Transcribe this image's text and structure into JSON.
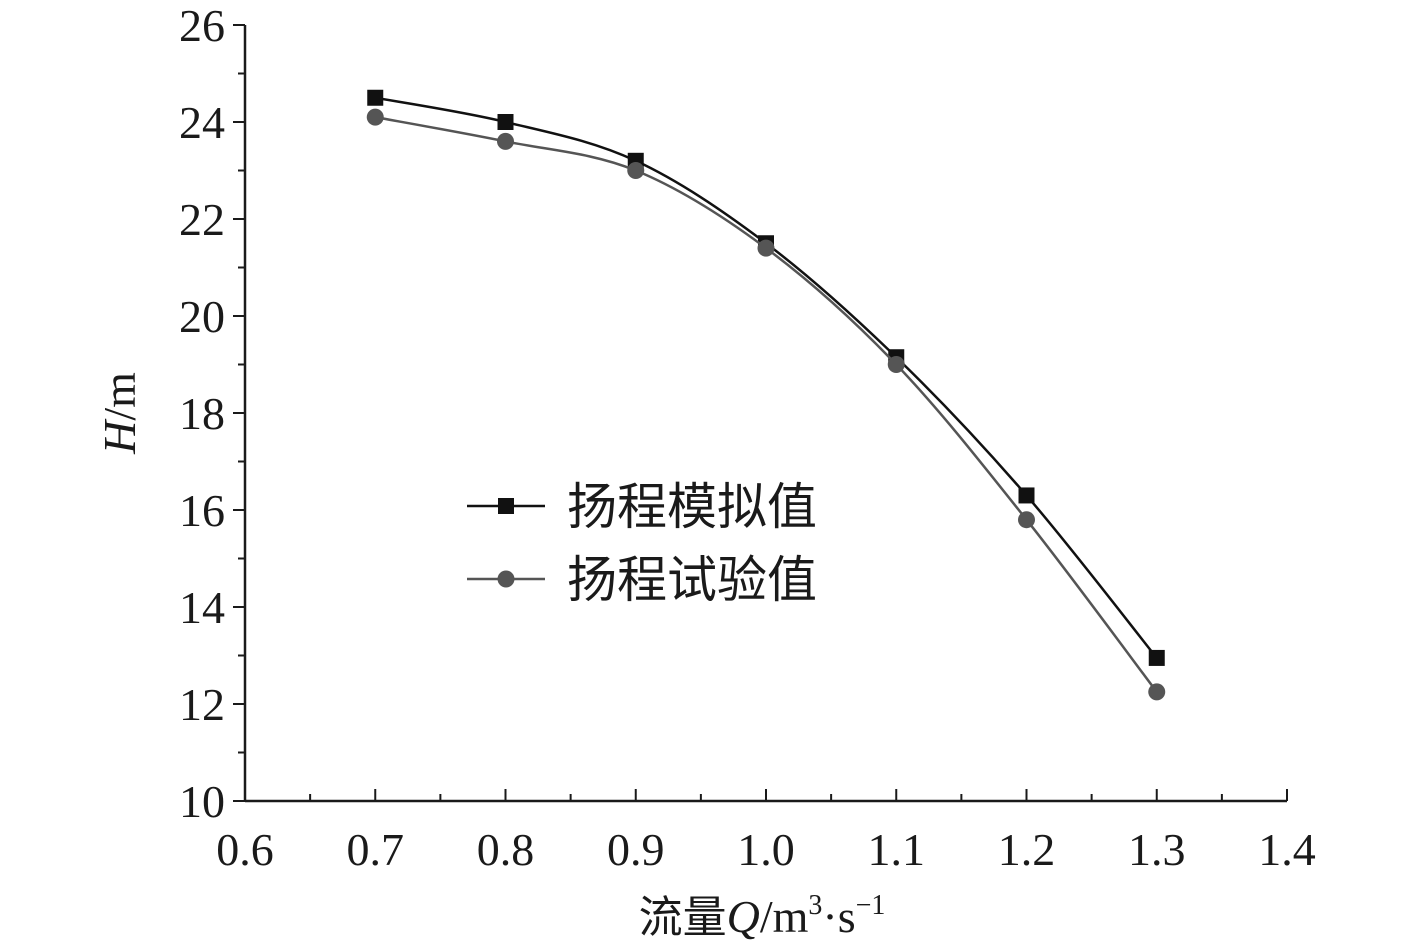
{
  "chart_data": {
    "type": "line",
    "title": "",
    "xlabel_prefix": "流量",
    "xlabel_var": "Q",
    "xlabel_unit_pre": "/m",
    "xlabel_sup1": "3",
    "xlabel_mid": "·s",
    "xlabel_sup2": "−1",
    "ylabel_var": "H",
    "ylabel_unit": "/m",
    "xlim": [
      0.6,
      1.4
    ],
    "ylim": [
      10,
      26
    ],
    "x_ticks": [
      "0.6",
      "0.7",
      "0.8",
      "0.9",
      "1.0",
      "1.1",
      "1.2",
      "1.3",
      "1.4"
    ],
    "y_ticks": [
      "10",
      "12",
      "14",
      "16",
      "18",
      "20",
      "22",
      "24",
      "26"
    ],
    "grid": false,
    "legend_position": "center-left",
    "x": [
      0.7,
      0.8,
      0.9,
      1.0,
      1.1,
      1.2,
      1.3
    ],
    "series": [
      {
        "name": "扬程模拟值",
        "marker": "square",
        "color": "#111111",
        "values": [
          24.5,
          24.0,
          23.2,
          21.5,
          19.15,
          16.3,
          12.95
        ]
      },
      {
        "name": "扬程试验值",
        "marker": "circle",
        "color": "#555555",
        "values": [
          24.1,
          23.6,
          23.0,
          21.4,
          19.0,
          15.8,
          12.25
        ]
      }
    ]
  }
}
